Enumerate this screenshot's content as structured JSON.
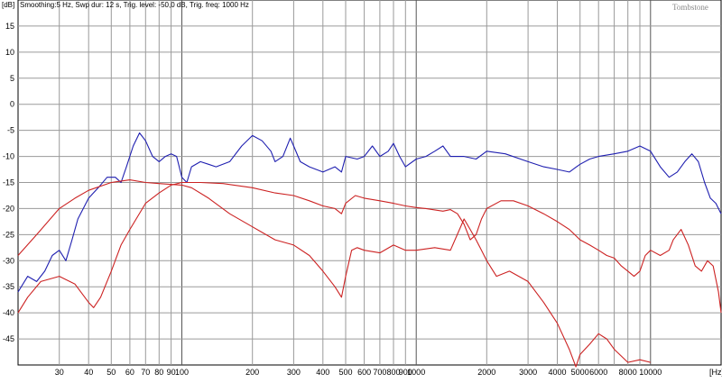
{
  "header": {
    "info": "Smoothing:5 Hz, Swp dur: 12 s, Trig. level: -50,0 dB, Trig. freq: 1000 Hz",
    "brand": "Tombstone"
  },
  "chart_data": {
    "type": "line",
    "xscale": "log",
    "ylabel": "[dB]",
    "xlabel": "[Hz]",
    "xlim": [
      20,
      20000
    ],
    "ylim": [
      -50,
      20
    ],
    "grid": true,
    "legend": "none",
    "x_tick_labels": [
      {
        "v": 30,
        "t": "30"
      },
      {
        "v": 40,
        "t": "40"
      },
      {
        "v": 50,
        "t": "50"
      },
      {
        "v": 60,
        "t": "60"
      },
      {
        "v": 70,
        "t": "70"
      },
      {
        "v": 80,
        "t": "80"
      },
      {
        "v": 90,
        "t": "90"
      },
      {
        "v": 100,
        "t": "100"
      },
      {
        "v": 200,
        "t": "200"
      },
      {
        "v": 300,
        "t": "300"
      },
      {
        "v": 400,
        "t": "400"
      },
      {
        "v": 500,
        "t": "500"
      },
      {
        "v": 600,
        "t": "600"
      },
      {
        "v": 700,
        "t": "700"
      },
      {
        "v": 800,
        "t": "800"
      },
      {
        "v": 900,
        "t": "900"
      },
      {
        "v": 1000,
        "t": "1000"
      },
      {
        "v": 2000,
        "t": "2000"
      },
      {
        "v": 3000,
        "t": "3000"
      },
      {
        "v": 4000,
        "t": "4000"
      },
      {
        "v": 5000,
        "t": "5000"
      },
      {
        "v": 6000,
        "t": "6000"
      },
      {
        "v": 8000,
        "t": "8000"
      },
      {
        "v": 10000,
        "t": "10000"
      }
    ],
    "y_tick_labels": [
      {
        "v": 15,
        "t": "15"
      },
      {
        "v": 10,
        "t": "10"
      },
      {
        "v": 5,
        "t": "5"
      },
      {
        "v": 0,
        "t": "0"
      },
      {
        "v": -5,
        "t": "-5"
      },
      {
        "v": -10,
        "t": "-10"
      },
      {
        "v": -15,
        "t": "-15"
      },
      {
        "v": -20,
        "t": "-20"
      },
      {
        "v": -25,
        "t": "-25"
      },
      {
        "v": -30,
        "t": "-30"
      },
      {
        "v": -35,
        "t": "-35"
      },
      {
        "v": -40,
        "t": "-40"
      },
      {
        "v": -45,
        "t": "-45"
      }
    ],
    "series": [
      {
        "color": "#1f1fb0",
        "points": [
          [
            20,
            -36
          ],
          [
            22,
            -33
          ],
          [
            24,
            -34
          ],
          [
            26,
            -32
          ],
          [
            28,
            -29
          ],
          [
            30,
            -28
          ],
          [
            32,
            -30
          ],
          [
            34,
            -26
          ],
          [
            36,
            -22
          ],
          [
            40,
            -18
          ],
          [
            44,
            -16
          ],
          [
            48,
            -14
          ],
          [
            52,
            -14
          ],
          [
            55,
            -15
          ],
          [
            58,
            -12
          ],
          [
            62,
            -8
          ],
          [
            66,
            -5.5
          ],
          [
            70,
            -7
          ],
          [
            75,
            -10
          ],
          [
            80,
            -11
          ],
          [
            85,
            -10
          ],
          [
            90,
            -9.5
          ],
          [
            95,
            -10
          ],
          [
            100,
            -14
          ],
          [
            105,
            -15
          ],
          [
            110,
            -12
          ],
          [
            120,
            -11
          ],
          [
            130,
            -11.5
          ],
          [
            140,
            -12
          ],
          [
            160,
            -11
          ],
          [
            180,
            -8
          ],
          [
            200,
            -6
          ],
          [
            220,
            -7
          ],
          [
            240,
            -9
          ],
          [
            250,
            -11
          ],
          [
            270,
            -10
          ],
          [
            290,
            -6.5
          ],
          [
            300,
            -8
          ],
          [
            320,
            -11
          ],
          [
            350,
            -12
          ],
          [
            400,
            -13
          ],
          [
            450,
            -12
          ],
          [
            480,
            -13
          ],
          [
            500,
            -10
          ],
          [
            560,
            -10.5
          ],
          [
            600,
            -10
          ],
          [
            650,
            -8
          ],
          [
            700,
            -10
          ],
          [
            760,
            -9
          ],
          [
            800,
            -7.5
          ],
          [
            850,
            -10
          ],
          [
            900,
            -12
          ],
          [
            1000,
            -10.5
          ],
          [
            1100,
            -10
          ],
          [
            1200,
            -9
          ],
          [
            1300,
            -8
          ],
          [
            1400,
            -10
          ],
          [
            1600,
            -10
          ],
          [
            1800,
            -10.5
          ],
          [
            2000,
            -9
          ],
          [
            2400,
            -9.5
          ],
          [
            3000,
            -11
          ],
          [
            3500,
            -12
          ],
          [
            4000,
            -12.5
          ],
          [
            4500,
            -13
          ],
          [
            5000,
            -11.5
          ],
          [
            5500,
            -10.5
          ],
          [
            6000,
            -10
          ],
          [
            7000,
            -9.5
          ],
          [
            8000,
            -9
          ],
          [
            9000,
            -8
          ],
          [
            10000,
            -9
          ],
          [
            11000,
            -12
          ],
          [
            12000,
            -14
          ],
          [
            13000,
            -13
          ],
          [
            14000,
            -11
          ],
          [
            15000,
            -9.5
          ],
          [
            16000,
            -11
          ],
          [
            17000,
            -15
          ],
          [
            18000,
            -18
          ],
          [
            19000,
            -19
          ],
          [
            20000,
            -21
          ]
        ]
      },
      {
        "color": "#cc2222",
        "points": [
          [
            20,
            -29
          ],
          [
            24,
            -25
          ],
          [
            30,
            -20
          ],
          [
            35,
            -18
          ],
          [
            40,
            -16.5
          ],
          [
            50,
            -15
          ],
          [
            60,
            -14.5
          ],
          [
            70,
            -15
          ],
          [
            80,
            -15.2
          ],
          [
            100,
            -15.5
          ],
          [
            110,
            -16
          ],
          [
            130,
            -18
          ],
          [
            160,
            -21
          ],
          [
            200,
            -23.5
          ],
          [
            250,
            -26
          ],
          [
            300,
            -27
          ],
          [
            350,
            -29
          ],
          [
            400,
            -32
          ],
          [
            450,
            -35
          ],
          [
            480,
            -37
          ],
          [
            500,
            -33
          ],
          [
            530,
            -28
          ],
          [
            560,
            -27.5
          ],
          [
            600,
            -28
          ],
          [
            700,
            -28.5
          ],
          [
            800,
            -27
          ],
          [
            900,
            -28
          ],
          [
            1000,
            -28
          ],
          [
            1200,
            -27.5
          ],
          [
            1400,
            -28
          ],
          [
            1600,
            -22
          ],
          [
            1700,
            -24
          ],
          [
            1800,
            -26
          ],
          [
            1900,
            -28
          ],
          [
            2000,
            -30
          ],
          [
            2200,
            -33
          ],
          [
            2500,
            -32
          ],
          [
            3000,
            -34
          ],
          [
            3500,
            -38
          ],
          [
            4000,
            -42
          ],
          [
            4500,
            -47
          ],
          [
            4800,
            -52
          ],
          [
            5000,
            -48
          ],
          [
            5500,
            -46
          ],
          [
            6000,
            -44
          ],
          [
            6500,
            -45
          ],
          [
            7000,
            -47
          ],
          [
            8000,
            -49.5
          ],
          [
            9000,
            -49
          ],
          [
            10000,
            -49.5
          ]
        ]
      },
      {
        "color": "#cc2222",
        "points": [
          [
            20,
            -40
          ],
          [
            22,
            -37
          ],
          [
            25,
            -34
          ],
          [
            30,
            -33
          ],
          [
            35,
            -34.5
          ],
          [
            40,
            -38
          ],
          [
            42,
            -39
          ],
          [
            45,
            -37
          ],
          [
            50,
            -32
          ],
          [
            55,
            -27
          ],
          [
            60,
            -24
          ],
          [
            70,
            -19
          ],
          [
            80,
            -17
          ],
          [
            90,
            -15.5
          ],
          [
            100,
            -15
          ],
          [
            120,
            -15
          ],
          [
            150,
            -15.2
          ],
          [
            200,
            -16
          ],
          [
            250,
            -17
          ],
          [
            300,
            -17.5
          ],
          [
            350,
            -18.5
          ],
          [
            400,
            -19.5
          ],
          [
            450,
            -20
          ],
          [
            480,
            -21
          ],
          [
            500,
            -19
          ],
          [
            550,
            -17.5
          ],
          [
            600,
            -18
          ],
          [
            700,
            -18.5
          ],
          [
            800,
            -19
          ],
          [
            900,
            -19.5
          ],
          [
            1000,
            -19.8
          ],
          [
            1100,
            -20
          ],
          [
            1300,
            -20.5
          ],
          [
            1400,
            -20.2
          ],
          [
            1500,
            -21
          ],
          [
            1600,
            -23
          ],
          [
            1700,
            -26
          ],
          [
            1800,
            -25
          ],
          [
            1900,
            -22
          ],
          [
            2000,
            -20
          ],
          [
            2300,
            -18.5
          ],
          [
            2600,
            -18.5
          ],
          [
            3000,
            -19.5
          ],
          [
            3500,
            -21
          ],
          [
            4000,
            -22.5
          ],
          [
            4500,
            -24
          ],
          [
            5000,
            -26
          ],
          [
            5500,
            -27
          ],
          [
            6000,
            -28
          ],
          [
            6500,
            -29
          ],
          [
            7000,
            -29.5
          ],
          [
            7500,
            -31
          ],
          [
            8000,
            -32
          ],
          [
            8500,
            -33
          ],
          [
            9000,
            -32
          ],
          [
            9500,
            -29
          ],
          [
            10000,
            -28
          ],
          [
            11000,
            -29
          ],
          [
            12000,
            -28
          ],
          [
            12500,
            -26
          ],
          [
            13500,
            -24
          ],
          [
            14500,
            -27
          ],
          [
            15500,
            -31
          ],
          [
            16500,
            -32
          ],
          [
            17500,
            -30
          ],
          [
            18500,
            -31
          ],
          [
            19500,
            -36
          ],
          [
            20000,
            -40
          ]
        ]
      }
    ]
  }
}
